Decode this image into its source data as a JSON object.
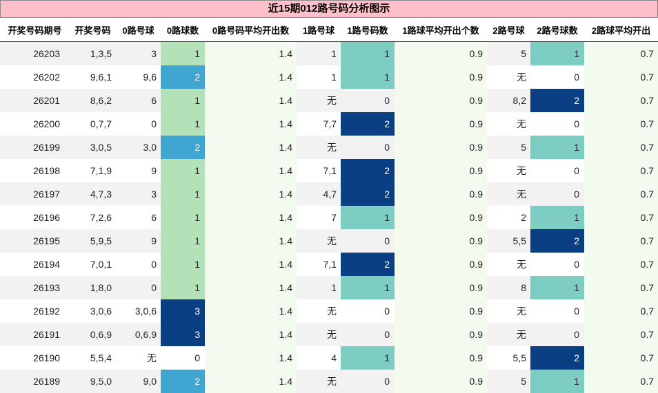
{
  "title": "近15期012路号码分析图示",
  "headers": [
    "开奖号码期号",
    "开奖号码",
    "0路号球",
    "0路球数",
    "0路号码平均开出数",
    "1路号球",
    "1路号码数",
    "1路球平均开出个数",
    "2路号球",
    "2路号球数",
    "2路球平均开出"
  ],
  "colors": {
    "title_bg": "#ffc0cb",
    "count_0_light": "#b3e2b8",
    "count_1_teal": "#7ecdc3",
    "count_2_blue": "#41a5d2",
    "count_2_navy": "#0b3f83",
    "avg_bg": "#f3faf0"
  },
  "rows": [
    {
      "period": "26203",
      "numbers": "1,3,5",
      "r0_balls": "3",
      "r0_count": "1",
      "r0_avg": "1.4",
      "r1_balls": "1",
      "r1_count": "1",
      "r1_avg": "0.9",
      "r2_balls": "5",
      "r2_count": "1",
      "r2_avg": "0.7"
    },
    {
      "period": "26202",
      "numbers": "9,6,1",
      "r0_balls": "9,6",
      "r0_count": "2",
      "r0_avg": "1.4",
      "r1_balls": "1",
      "r1_count": "1",
      "r1_avg": "0.9",
      "r2_balls": "无",
      "r2_count": "0",
      "r2_avg": "0.7"
    },
    {
      "period": "26201",
      "numbers": "8,6,2",
      "r0_balls": "6",
      "r0_count": "1",
      "r0_avg": "1.4",
      "r1_balls": "无",
      "r1_count": "0",
      "r1_avg": "0.9",
      "r2_balls": "8,2",
      "r2_count": "2",
      "r2_avg": "0.7"
    },
    {
      "period": "26200",
      "numbers": "0,7,7",
      "r0_balls": "0",
      "r0_count": "1",
      "r0_avg": "1.4",
      "r1_balls": "7,7",
      "r1_count": "2",
      "r1_avg": "0.9",
      "r2_balls": "无",
      "r2_count": "0",
      "r2_avg": "0.7"
    },
    {
      "period": "26199",
      "numbers": "3,0,5",
      "r0_balls": "3,0",
      "r0_count": "2",
      "r0_avg": "1.4",
      "r1_balls": "无",
      "r1_count": "0",
      "r1_avg": "0.9",
      "r2_balls": "5",
      "r2_count": "1",
      "r2_avg": "0.7"
    },
    {
      "period": "26198",
      "numbers": "7,1,9",
      "r0_balls": "9",
      "r0_count": "1",
      "r0_avg": "1.4",
      "r1_balls": "7,1",
      "r1_count": "2",
      "r1_avg": "0.9",
      "r2_balls": "无",
      "r2_count": "0",
      "r2_avg": "0.7"
    },
    {
      "period": "26197",
      "numbers": "4,7,3",
      "r0_balls": "3",
      "r0_count": "1",
      "r0_avg": "1.4",
      "r1_balls": "4,7",
      "r1_count": "2",
      "r1_avg": "0.9",
      "r2_balls": "无",
      "r2_count": "0",
      "r2_avg": "0.7"
    },
    {
      "period": "26196",
      "numbers": "7,2,6",
      "r0_balls": "6",
      "r0_count": "1",
      "r0_avg": "1.4",
      "r1_balls": "7",
      "r1_count": "1",
      "r1_avg": "0.9",
      "r2_balls": "2",
      "r2_count": "1",
      "r2_avg": "0.7"
    },
    {
      "period": "26195",
      "numbers": "5,9,5",
      "r0_balls": "9",
      "r0_count": "1",
      "r0_avg": "1.4",
      "r1_balls": "无",
      "r1_count": "0",
      "r1_avg": "0.9",
      "r2_balls": "5,5",
      "r2_count": "2",
      "r2_avg": "0.7"
    },
    {
      "period": "26194",
      "numbers": "7,0,1",
      "r0_balls": "0",
      "r0_count": "1",
      "r0_avg": "1.4",
      "r1_balls": "7,1",
      "r1_count": "2",
      "r1_avg": "0.9",
      "r2_balls": "无",
      "r2_count": "0",
      "r2_avg": "0.7"
    },
    {
      "period": "26193",
      "numbers": "1,8,0",
      "r0_balls": "0",
      "r0_count": "1",
      "r0_avg": "1.4",
      "r1_balls": "1",
      "r1_count": "1",
      "r1_avg": "0.9",
      "r2_balls": "8",
      "r2_count": "1",
      "r2_avg": "0.7"
    },
    {
      "period": "26192",
      "numbers": "3,0,6",
      "r0_balls": "3,0,6",
      "r0_count": "3",
      "r0_avg": "1.4",
      "r1_balls": "无",
      "r1_count": "0",
      "r1_avg": "0.9",
      "r2_balls": "无",
      "r2_count": "0",
      "r2_avg": "0.7"
    },
    {
      "period": "26191",
      "numbers": "0,6,9",
      "r0_balls": "0,6,9",
      "r0_count": "3",
      "r0_avg": "1.4",
      "r1_balls": "无",
      "r1_count": "0",
      "r1_avg": "0.9",
      "r2_balls": "无",
      "r2_count": "0",
      "r2_avg": "0.7"
    },
    {
      "period": "26190",
      "numbers": "5,5,4",
      "r0_balls": "无",
      "r0_count": "0",
      "r0_avg": "1.4",
      "r1_balls": "4",
      "r1_count": "1",
      "r1_avg": "0.9",
      "r2_balls": "5,5",
      "r2_count": "2",
      "r2_avg": "0.7"
    },
    {
      "period": "26189",
      "numbers": "9,5,0",
      "r0_balls": "9,0",
      "r0_count": "2",
      "r0_avg": "1.4",
      "r1_balls": "无",
      "r1_count": "0",
      "r1_avg": "0.9",
      "r2_balls": "5",
      "r2_count": "1",
      "r2_avg": "0.7"
    }
  ]
}
